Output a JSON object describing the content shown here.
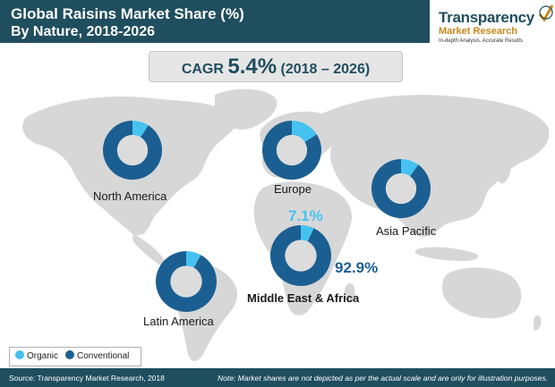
{
  "header": {
    "title": "Global Raisins Market Share (%)",
    "subtitle": "By Nature, 2018-2026"
  },
  "logo": {
    "name": "Transparency",
    "sub": "Market Research",
    "tagline": "In-depth Analysis. Accurate Results"
  },
  "cagr": {
    "label": "CAGR",
    "value": "5.4%",
    "period": "(2018 – 2026)"
  },
  "colors": {
    "header_bg": "#1f4e5f",
    "organic": "#45c2ef",
    "conventional": "#1b5f92",
    "map_land": "#d7d7d7",
    "donut_hole": "#dcdcdc"
  },
  "chart_data": {
    "type": "pie",
    "series_names": [
      "Organic",
      "Conventional"
    ],
    "regions": [
      {
        "name": "North America",
        "values": [
          9,
          91
        ]
      },
      {
        "name": "Europe",
        "values": [
          16,
          84
        ]
      },
      {
        "name": "Asia Pacific",
        "values": [
          10,
          90
        ]
      },
      {
        "name": "Middle East & Africa",
        "values": [
          7.1,
          92.9
        ],
        "labels": [
          "7.1%",
          "92.9%"
        ]
      },
      {
        "name": "Latin America",
        "values": [
          8,
          92
        ]
      }
    ]
  },
  "legend": {
    "organic": "Organic",
    "conventional": "Conventional"
  },
  "footer": {
    "source": "Source: Transparency Market Research, 2018",
    "note": "Note: Market shares are not depicted as per the actual scale and are only for illustration purposes."
  }
}
